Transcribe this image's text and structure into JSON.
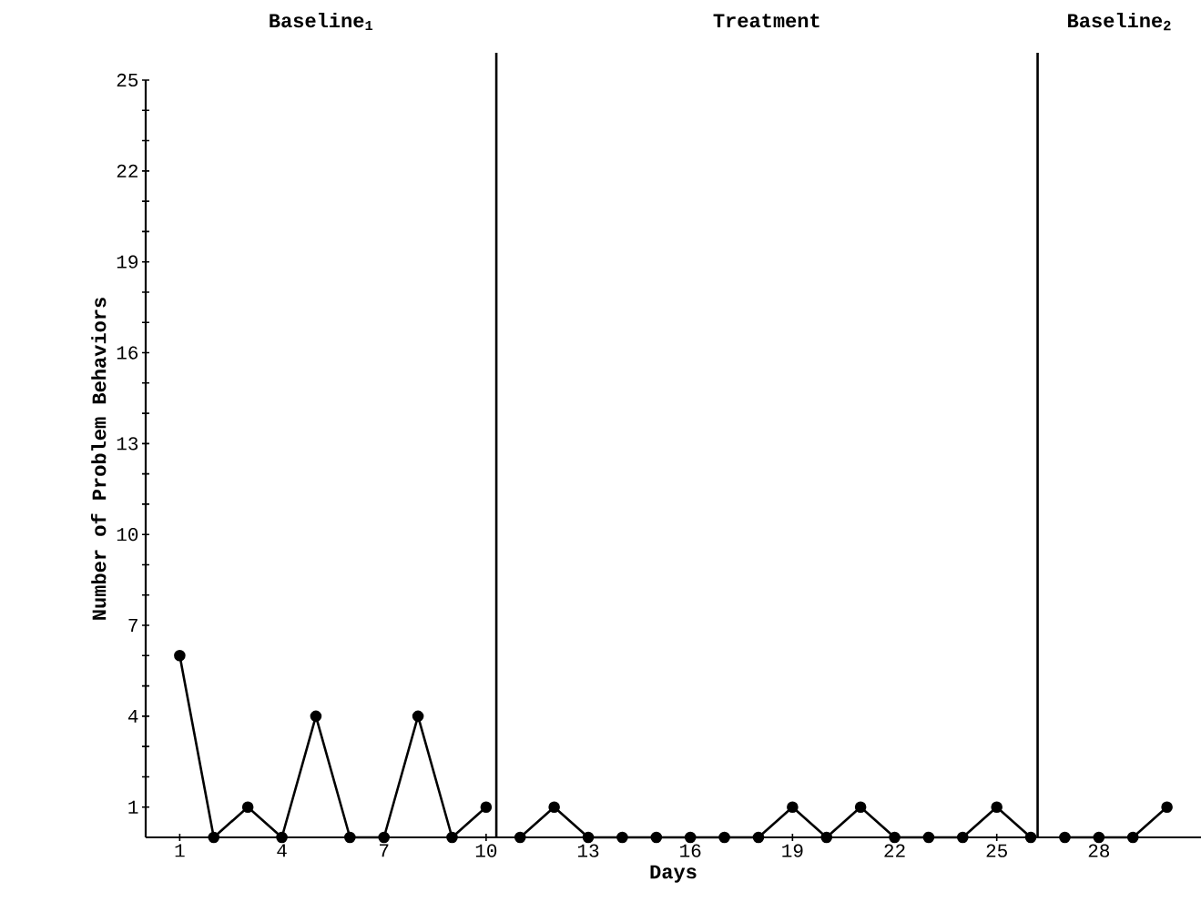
{
  "chart_data": {
    "type": "line",
    "xlabel": "Days",
    "ylabel": "Number of Problem Behaviors",
    "annotations": [
      "Baseline$_{1}$",
      "Treatment",
      "Baseline$_{2}$"
    ],
    "series": [
      {
        "color": "#000000",
        "x": [
          1,
          2,
          3,
          4,
          5,
          6,
          7,
          8,
          9,
          10
        ],
        "values": [
          6,
          0,
          1,
          0,
          4,
          0,
          0,
          4,
          0,
          1
        ]
      },
      {
        "color": "#000000",
        "x": [
          11,
          12,
          13,
          14,
          15,
          16,
          17,
          18,
          19,
          20,
          21,
          22,
          23,
          24,
          25,
          26
        ],
        "values": [
          0,
          1,
          0,
          0,
          0,
          0,
          0,
          0,
          1,
          0,
          1,
          0,
          0,
          0,
          1,
          0
        ]
      },
      {
        "color": "#000000",
        "x": [
          27,
          28,
          29,
          30
        ],
        "values": [
          0,
          0,
          0,
          1
        ]
      }
    ],
    "xlim": [
      0,
      31
    ],
    "ylim": [
      0,
      25
    ],
    "xticks": [
      1,
      4,
      7,
      10,
      13,
      16,
      19,
      22,
      25,
      28
    ],
    "yticks": [
      1,
      {
        "value": 2,
        "label": null
      },
      {
        "value": 3,
        "label": null
      },
      4,
      {
        "value": 5,
        "label": null
      },
      {
        "value": 6,
        "label": null
      },
      7,
      {
        "value": 8,
        "label": null
      },
      {
        "value": 9,
        "label": null
      },
      10,
      {
        "value": 11,
        "label": null
      },
      {
        "value": 12,
        "label": null
      },
      13,
      {
        "value": 14,
        "label": null
      },
      {
        "value": 15,
        "label": null
      },
      16,
      {
        "value": 17,
        "label": null
      },
      {
        "value": 18,
        "label": null
      },
      19,
      {
        "value": 20,
        "label": null
      },
      {
        "value": 21,
        "label": null
      },
      22,
      {
        "value": 23,
        "label": null
      },
      {
        "value": 24,
        "label": null
      },
      25
    ],
    "ref_lines": [
      {
        "axis": "x",
        "value": 10.3,
        "color": "#000000"
      },
      {
        "axis": "x",
        "value": 26.2,
        "color": "#000000"
      }
    ],
    "grid": false,
    "marker": "circle",
    "line_style": "solid"
  }
}
